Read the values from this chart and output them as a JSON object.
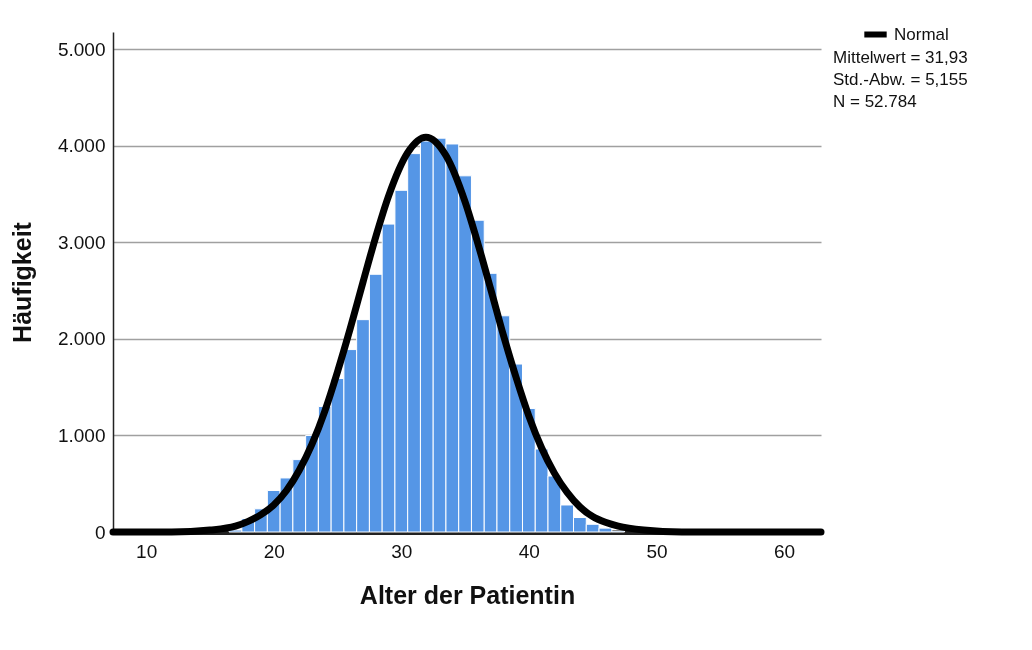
{
  "chart_data": {
    "type": "histogram",
    "xlabel": "Alter der Patientin",
    "ylabel": "Häufigkeit",
    "bins": [
      15.5,
      16.5,
      17.5,
      18.5,
      19.5,
      20.5,
      21.5,
      22.5,
      23.5,
      24.5,
      25.5,
      26.5,
      27.5,
      28.5,
      29.5,
      30.5,
      31.5,
      32.5,
      33.5,
      34.5,
      35.5,
      36.5,
      37.5,
      38.5,
      39.5,
      40.5,
      41.5,
      42.5,
      43.5,
      44.5,
      45.5,
      46.5,
      47.5
    ],
    "values": [
      null,
      20,
      140,
      240,
      430,
      560,
      750,
      1000,
      1300,
      1590,
      1890,
      2200,
      2670,
      3190,
      3540,
      3920,
      4050,
      4080,
      4020,
      3690,
      3230,
      2680,
      2240,
      1740,
      1280,
      860,
      580,
      280,
      150,
      80,
      40,
      10
    ],
    "color": "#5596e6",
    "series": [
      {
        "type": "line",
        "name": "Normal",
        "color": "#000000",
        "x": [
          7.4,
          12,
          15,
          17,
          18,
          19,
          20,
          21,
          22,
          23,
          24,
          25,
          26,
          27,
          28,
          29,
          30.5,
          31.93,
          33.5,
          35,
          36,
          37,
          38,
          39,
          40,
          41,
          42,
          43,
          44,
          45,
          46,
          47,
          49,
          52,
          62.9
        ],
        "values": [
          0,
          0,
          20,
          60,
          110,
          180,
          280,
          430,
          640,
          910,
          1250,
          1660,
          2110,
          2590,
          3060,
          3480,
          3930,
          4090,
          3900,
          3420,
          2990,
          2520,
          2040,
          1600,
          1200,
          870,
          610,
          410,
          260,
          160,
          100,
          60,
          20,
          0,
          0
        ]
      }
    ],
    "xlim": [
      7.4,
      62.9
    ],
    "xticks": [
      10,
      20,
      30,
      40,
      50,
      60
    ],
    "ylim": [
      0,
      5180
    ],
    "yticks": [
      0,
      {
        "value": 1000,
        "label": "1.000"
      },
      {
        "value": 2000,
        "label": "2.000"
      },
      {
        "value": 3000,
        "label": "3.000"
      },
      {
        "value": 4000,
        "label": "4.000"
      },
      {
        "value": 5000,
        "label": "5.000"
      }
    ],
    "grid": "y",
    "legend": "top right",
    "line_style": "solid",
    "marker": "none",
    "annotations": [
      "Mittelwert =   31,93",
      "Std.-Abw. =   5,155",
      "N = 52.784"
    ]
  }
}
